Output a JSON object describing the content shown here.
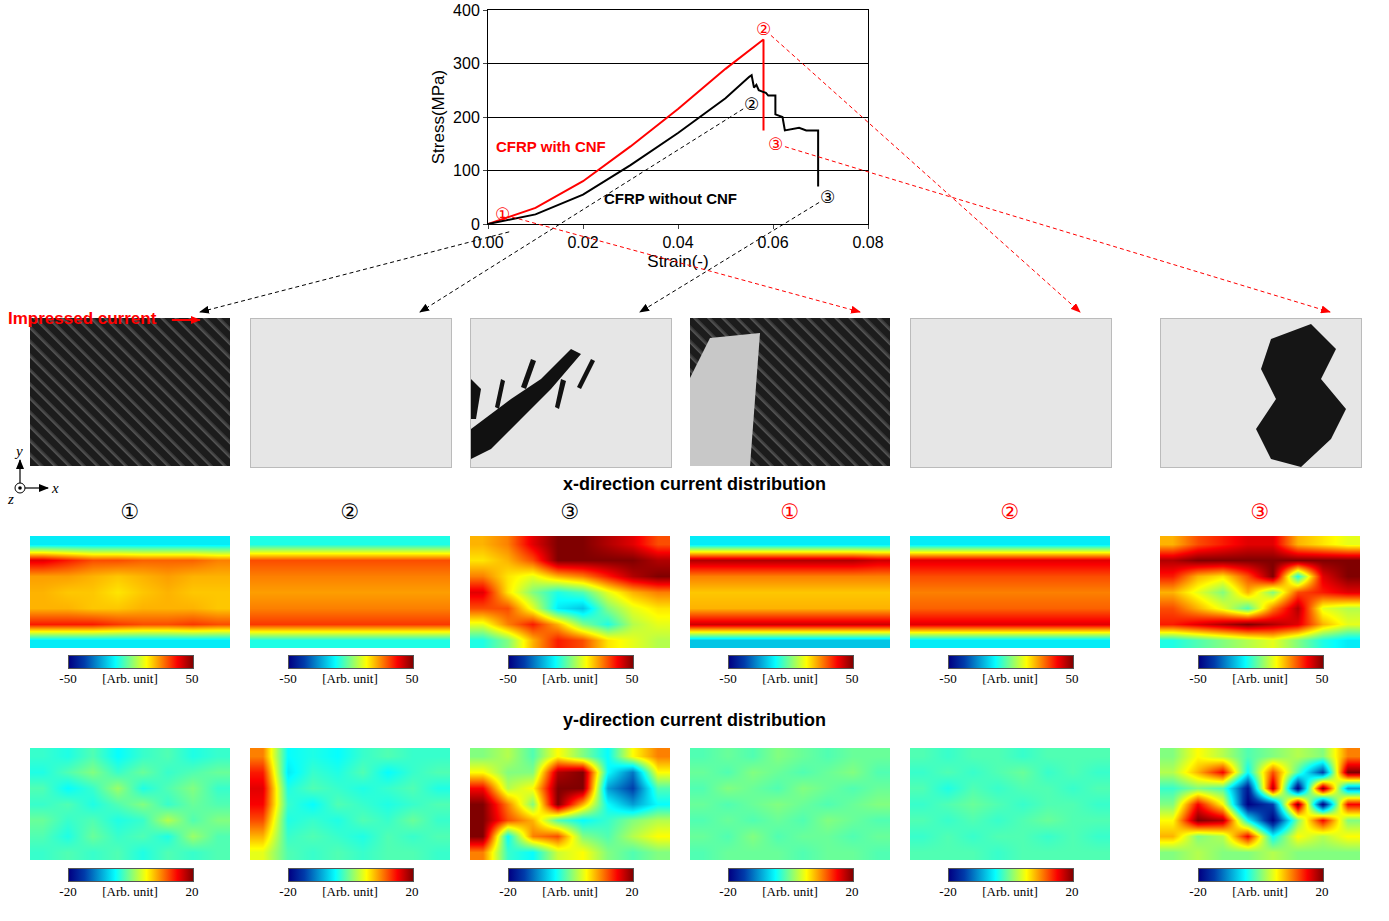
{
  "chart_data": {
    "type": "line",
    "x_label": "Strain(-)",
    "y_label": "Stress(MPa)",
    "xlim": [
      0,
      0.08
    ],
    "ylim": [
      0,
      400
    ],
    "xticks": [
      {
        "value": 0,
        "label": "0.00"
      },
      {
        "value": 0.02,
        "label": "0.02"
      },
      {
        "value": 0.04,
        "label": "0.04"
      },
      {
        "value": 0.06,
        "label": "0.06"
      },
      {
        "value": 0.08,
        "label": "0.08"
      }
    ],
    "yticks": [
      0,
      100,
      200,
      300,
      400
    ],
    "grid": true,
    "series": [
      {
        "name": "CFRP with CNF",
        "color": "#ff0000",
        "x": [
          0,
          0.01,
          0.02,
          0.03,
          0.04,
          0.05,
          0.058,
          0.058
        ],
        "values": [
          0,
          30,
          80,
          145,
          215,
          290,
          345,
          175
        ],
        "points": [
          {
            "label": "①",
            "x": 0.003,
            "y": 18
          },
          {
            "label": "②",
            "x": 0.058,
            "y": 365
          },
          {
            "label": "③",
            "x": 0.0605,
            "y": 150
          }
        ]
      },
      {
        "name": "CFRP without CNF",
        "color": "#000000",
        "x": [
          0,
          0.01,
          0.02,
          0.03,
          0.04,
          0.05,
          0.055,
          0.0555,
          0.056,
          0.0565,
          0.057,
          0.0585,
          0.059,
          0.0605,
          0.0605,
          0.062,
          0.0625,
          0.0655,
          0.067,
          0.0695,
          0.0695
        ],
        "values": [
          0,
          18,
          55,
          110,
          170,
          235,
          275,
          278,
          255,
          260,
          250,
          245,
          240,
          240,
          205,
          200,
          175,
          180,
          175,
          175,
          70
        ],
        "points": [
          {
            "label": "①",
            "x": 0.0065,
            "y": -10
          },
          {
            "label": "②",
            "x": 0.0555,
            "y": 225
          },
          {
            "label": "③",
            "x": 0.0715,
            "y": 50
          }
        ]
      }
    ]
  },
  "figure": {
    "impressed_current": "Impressed current",
    "axes": {
      "x": "x",
      "y": "y",
      "z": "z"
    },
    "x_title": "x-direction current distribution",
    "y_title": "y-direction current distribution",
    "x_scale": {
      "zlim": [
        -50,
        50
      ],
      "zticks": [
        -50,
        50
      ],
      "unit": "[Arb. unit]"
    },
    "y_scale": {
      "zlim": [
        -20,
        20
      ],
      "zticks": [
        -20,
        20
      ],
      "unit": "[Arb. unit]"
    },
    "panels": [
      {
        "series": "CFRP without CNF",
        "stage": "①",
        "x_map": [
          [
            -15,
            -15,
            -15,
            -15,
            -15,
            -15,
            -15,
            -15
          ],
          [
            40,
            35,
            30,
            30,
            28,
            28,
            28,
            25
          ],
          [
            22,
            22,
            20,
            18,
            20,
            22,
            20,
            20
          ],
          [
            20,
            18,
            18,
            15,
            18,
            20,
            18,
            18
          ],
          [
            20,
            20,
            18,
            18,
            20,
            20,
            20,
            18
          ],
          [
            35,
            35,
            35,
            32,
            30,
            30,
            32,
            30
          ],
          [
            -15,
            -15,
            -15,
            -15,
            -15,
            -15,
            -15,
            -15
          ]
        ],
        "y_map": [
          [
            -3,
            -4,
            -2,
            -5,
            -3,
            -2,
            -4,
            -3
          ],
          [
            -4,
            -2,
            0,
            -3,
            -1,
            -3,
            -2,
            -1
          ],
          [
            -2,
            -5,
            -3,
            1,
            -4,
            -2,
            0,
            -3
          ],
          [
            -3,
            -2,
            -4,
            -2,
            0,
            -3,
            -1,
            -2
          ],
          [
            -1,
            -3,
            -2,
            -4,
            -3,
            2,
            -2,
            0
          ],
          [
            -2,
            -4,
            -1,
            -3,
            -2,
            -4,
            1,
            -2
          ],
          [
            -3,
            -2,
            -3,
            -2,
            -4,
            -2,
            -3,
            -2
          ]
        ]
      },
      {
        "series": "CFRP without CNF",
        "stage": "②",
        "x_map": [
          [
            -10,
            -10,
            -10,
            -10,
            -10,
            -10,
            -10,
            -10
          ],
          [
            30,
            30,
            30,
            30,
            30,
            30,
            30,
            30
          ],
          [
            25,
            25,
            25,
            25,
            25,
            25,
            25,
            25
          ],
          [
            22,
            22,
            22,
            22,
            22,
            22,
            22,
            22
          ],
          [
            25,
            25,
            25,
            25,
            25,
            25,
            25,
            25
          ],
          [
            32,
            32,
            32,
            32,
            32,
            32,
            32,
            32
          ],
          [
            -10,
            -10,
            -10,
            -10,
            -10,
            -10,
            -10,
            -10
          ]
        ],
        "y_map": [
          [
            10,
            -5,
            -4,
            -5,
            -3,
            -2,
            -3,
            -3
          ],
          [
            14,
            -6,
            -3,
            -4,
            -2,
            -5,
            -3,
            -2
          ],
          [
            16,
            -4,
            -2,
            -3,
            -4,
            -3,
            -2,
            -4
          ],
          [
            15,
            -3,
            -5,
            -2,
            -3,
            -4,
            -3,
            -2
          ],
          [
            12,
            -4,
            -3,
            -4,
            -2,
            -3,
            -1,
            -3
          ],
          [
            8,
            -3,
            -2,
            -3,
            -4,
            -2,
            -3,
            -2
          ],
          [
            4,
            -2,
            -3,
            -2,
            -3,
            -2,
            -2,
            -3
          ]
        ]
      },
      {
        "series": "CFRP without CNF",
        "stage": "③",
        "x_map": [
          [
            20,
            25,
            40,
            50,
            50,
            45,
            40,
            30
          ],
          [
            15,
            20,
            30,
            50,
            50,
            50,
            50,
            45
          ],
          [
            25,
            15,
            10,
            20,
            25,
            35,
            45,
            50
          ],
          [
            40,
            15,
            0,
            -10,
            -5,
            10,
            20,
            25
          ],
          [
            30,
            30,
            10,
            -15,
            -20,
            0,
            10,
            15
          ],
          [
            10,
            25,
            35,
            20,
            0,
            -10,
            5,
            10
          ],
          [
            -10,
            0,
            20,
            35,
            30,
            15,
            10,
            5
          ]
        ],
        "y_map": [
          [
            0,
            2,
            -2,
            5,
            0,
            -5,
            5,
            10
          ],
          [
            5,
            0,
            0,
            18,
            20,
            -5,
            -12,
            5
          ],
          [
            15,
            2,
            5,
            20,
            20,
            -10,
            -15,
            -2
          ],
          [
            20,
            10,
            0,
            20,
            8,
            -5,
            -10,
            -5
          ],
          [
            20,
            12,
            8,
            -2,
            -5,
            -3,
            0,
            2
          ],
          [
            20,
            -5,
            10,
            12,
            0,
            -2,
            2,
            5
          ],
          [
            10,
            -3,
            -5,
            3,
            5,
            0,
            -2,
            0
          ]
        ]
      },
      {
        "series": "CFRP with CNF",
        "stage": "①",
        "x_map": [
          [
            -15,
            -15,
            -15,
            -15,
            -15,
            -15,
            -15,
            -15
          ],
          [
            45,
            45,
            45,
            45,
            45,
            45,
            45,
            42
          ],
          [
            25,
            25,
            25,
            25,
            25,
            25,
            25,
            25
          ],
          [
            18,
            18,
            18,
            18,
            18,
            18,
            18,
            18
          ],
          [
            20,
            20,
            20,
            20,
            20,
            20,
            20,
            20
          ],
          [
            42,
            42,
            42,
            42,
            42,
            42,
            42,
            42
          ],
          [
            -20,
            -20,
            -20,
            -20,
            -20,
            -20,
            -20,
            -20
          ]
        ],
        "y_map": [
          [
            -2,
            -1,
            -2,
            0,
            -1,
            -2,
            -1,
            -1
          ],
          [
            -1,
            -2,
            0,
            -1,
            -2,
            -1,
            0,
            -2
          ],
          [
            -2,
            0,
            -1,
            -2,
            0,
            -1,
            -2,
            -1
          ],
          [
            -1,
            -2,
            -1,
            0,
            -1,
            -2,
            -1,
            0
          ],
          [
            -2,
            -1,
            -2,
            -1,
            -2,
            0,
            -1,
            -2
          ],
          [
            -1,
            -2,
            0,
            -2,
            -1,
            -1,
            -2,
            -1
          ],
          [
            -2,
            -1,
            -1,
            -1,
            -2,
            -1,
            -1,
            -2
          ]
        ]
      },
      {
        "series": "CFRP with CNF",
        "stage": "②",
        "x_map": [
          [
            -15,
            -15,
            -15,
            -15,
            -15,
            -15,
            -15,
            -15
          ],
          [
            40,
            40,
            40,
            40,
            40,
            40,
            40,
            40
          ],
          [
            30,
            30,
            30,
            30,
            30,
            30,
            30,
            30
          ],
          [
            25,
            25,
            25,
            25,
            25,
            25,
            25,
            25
          ],
          [
            28,
            28,
            28,
            28,
            28,
            28,
            28,
            28
          ],
          [
            40,
            40,
            40,
            40,
            40,
            40,
            40,
            40
          ],
          [
            -15,
            -15,
            -15,
            -15,
            -15,
            -15,
            -15,
            -15
          ]
        ],
        "y_map": [
          [
            -2,
            -3,
            -2,
            -2,
            -3,
            -2,
            -2,
            -2
          ],
          [
            -3,
            -2,
            -3,
            -2,
            -1,
            -3,
            -2,
            -3
          ],
          [
            -2,
            -4,
            -2,
            -3,
            -2,
            -2,
            -3,
            -2
          ],
          [
            -3,
            -2,
            -1,
            -2,
            -3,
            -2,
            -2,
            -3
          ],
          [
            -2,
            -3,
            -2,
            -3,
            -2,
            -1,
            -2,
            -2
          ],
          [
            -3,
            -2,
            -3,
            -2,
            -2,
            -3,
            -2,
            -3
          ],
          [
            -2,
            -2,
            -2,
            -3,
            -2,
            -2,
            -2,
            -2
          ]
        ]
      },
      {
        "series": "CFRP with CNF",
        "stage": "③",
        "x_map": [
          [
            20,
            30,
            35,
            40,
            40,
            20,
            15,
            10
          ],
          [
            45,
            50,
            50,
            50,
            50,
            50,
            50,
            50
          ],
          [
            35,
            20,
            15,
            30,
            50,
            -10,
            40,
            50
          ],
          [
            20,
            10,
            0,
            20,
            0,
            30,
            35,
            40
          ],
          [
            30,
            20,
            10,
            -5,
            25,
            45,
            10,
            5
          ],
          [
            35,
            40,
            45,
            50,
            45,
            40,
            20,
            10
          ],
          [
            -10,
            -5,
            0,
            5,
            10,
            0,
            -10,
            -15
          ]
        ],
        "y_map": [
          [
            0,
            5,
            2,
            -2,
            0,
            2,
            0,
            10
          ],
          [
            2,
            8,
            15,
            -5,
            12,
            -2,
            -15,
            20
          ],
          [
            -3,
            0,
            -2,
            -18,
            18,
            -20,
            20,
            -10
          ],
          [
            0,
            15,
            5,
            -20,
            -15,
            20,
            -20,
            15
          ],
          [
            5,
            20,
            18,
            -5,
            -20,
            0,
            15,
            0
          ],
          [
            8,
            0,
            2,
            15,
            -5,
            5,
            2,
            5
          ],
          [
            0,
            2,
            0,
            0,
            2,
            0,
            0,
            0
          ]
        ]
      }
    ]
  }
}
